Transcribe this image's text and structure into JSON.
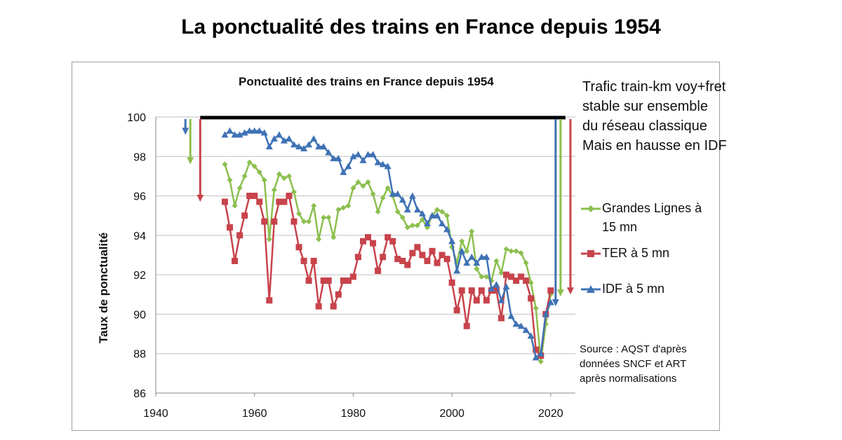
{
  "page": {
    "main_title": "La ponctualité des trains en France depuis 1954",
    "annotation_lines": [
      "Trafic train-km voy+fret",
      "stable sur ensemble",
      "du réseau classique",
      "Mais en hausse en IDF"
    ],
    "source_lines": [
      "Source : AQST d'après",
      "données SNCF et ART",
      "après  normalisations"
    ]
  },
  "colors": {
    "grandes_lignes": "#8cbf4e",
    "ter": "#c8434b",
    "idf": "#3f72b5",
    "reference_line": "#000000",
    "gridline": "#bfbfbf"
  },
  "chart_data": {
    "type": "line",
    "title": "Ponctualité des trains en France depuis 1954",
    "xlabel": "",
    "ylabel": "Taux de ponctualité",
    "xlim": [
      1940,
      2025
    ],
    "ylim": [
      86,
      100
    ],
    "xticks": [
      1940,
      1960,
      1980,
      2000,
      2020
    ],
    "yticks": [
      86,
      88,
      90,
      92,
      94,
      96,
      98,
      100
    ],
    "grid": "horizontal",
    "legend_position": "right",
    "legend": [
      {
        "label_lines": [
          "Grandes Lignes à",
          "15 mn"
        ],
        "series": "grandes_lignes",
        "marker": "diamond"
      },
      {
        "label_lines": [
          "TER à 5 mn"
        ],
        "series": "ter",
        "marker": "square"
      },
      {
        "label_lines": [
          "IDF à 5 mn"
        ],
        "series": "idf",
        "marker": "triangle"
      }
    ],
    "series": [
      {
        "name": "Grandes Lignes à 15 mn",
        "key": "grandes_lignes",
        "marker": "diamond",
        "x": [
          1954,
          1955,
          1956,
          1957,
          1958,
          1959,
          1960,
          1961,
          1962,
          1963,
          1964,
          1965,
          1966,
          1967,
          1968,
          1969,
          1970,
          1971,
          1972,
          1973,
          1974,
          1975,
          1976,
          1977,
          1978,
          1979,
          1980,
          1981,
          1982,
          1983,
          1984,
          1985,
          1986,
          1987,
          1988,
          1989,
          1990,
          1991,
          1992,
          1993,
          1994,
          1995,
          1996,
          1997,
          1998,
          1999,
          2000,
          2001,
          2002,
          2003,
          2004,
          2005,
          2006,
          2007,
          2008,
          2009,
          2010,
          2011,
          2012,
          2013,
          2014,
          2015,
          2016,
          2017,
          2018,
          2019,
          2020
        ],
        "y": [
          97.6,
          96.8,
          95.5,
          96.4,
          97.0,
          97.7,
          97.5,
          97.2,
          96.8,
          93.8,
          96.3,
          97.1,
          96.9,
          97.0,
          96.2,
          95.1,
          94.7,
          94.7,
          95.5,
          93.8,
          94.9,
          94.9,
          93.9,
          95.3,
          95.4,
          95.5,
          96.4,
          96.7,
          96.5,
          96.7,
          96.1,
          95.2,
          95.9,
          96.4,
          96.0,
          95.2,
          94.9,
          94.4,
          94.5,
          94.5,
          94.8,
          94.4,
          95.0,
          95.3,
          95.2,
          95.0,
          93.4,
          92.6,
          93.7,
          93.2,
          94.2,
          92.3,
          91.9,
          91.9,
          91.7,
          92.7,
          92.1,
          93.3,
          93.2,
          93.2,
          93.1,
          92.6,
          91.6,
          90.3,
          87.6,
          89.5,
          91.0
        ]
      },
      {
        "name": "TER à 5 mn",
        "key": "ter",
        "marker": "square",
        "x": [
          1954,
          1955,
          1956,
          1957,
          1958,
          1959,
          1960,
          1961,
          1962,
          1963,
          1964,
          1965,
          1966,
          1967,
          1968,
          1969,
          1970,
          1971,
          1972,
          1973,
          1974,
          1975,
          1976,
          1977,
          1978,
          1979,
          1980,
          1981,
          1982,
          1983,
          1984,
          1985,
          1986,
          1987,
          1988,
          1989,
          1990,
          1991,
          1992,
          1993,
          1994,
          1995,
          1996,
          1997,
          1998,
          1999,
          2000,
          2001,
          2002,
          2003,
          2004,
          2005,
          2006,
          2007,
          2008,
          2009,
          2010,
          2011,
          2012,
          2013,
          2014,
          2015,
          2016,
          2017,
          2018,
          2019,
          2020
        ],
        "y": [
          95.7,
          94.4,
          92.7,
          94.0,
          95.0,
          96.0,
          96.0,
          95.7,
          94.7,
          90.7,
          94.7,
          95.7,
          95.7,
          96.0,
          94.7,
          93.4,
          92.7,
          91.7,
          92.7,
          90.4,
          91.7,
          91.7,
          90.4,
          91.0,
          91.7,
          91.7,
          91.9,
          92.9,
          93.7,
          93.9,
          93.6,
          92.2,
          92.9,
          93.9,
          93.7,
          92.8,
          92.7,
          92.5,
          93.1,
          93.4,
          93.0,
          92.7,
          93.2,
          92.6,
          93.0,
          92.8,
          91.6,
          90.2,
          91.2,
          89.4,
          91.2,
          90.7,
          91.2,
          90.7,
          91.2,
          91.2,
          89.8,
          92.0,
          91.9,
          91.7,
          91.9,
          91.7,
          90.8,
          88.2,
          87.9,
          90.0,
          91.2
        ]
      },
      {
        "name": "IDF à 5 mn",
        "key": "idf",
        "marker": "triangle",
        "x": [
          1954,
          1955,
          1956,
          1957,
          1958,
          1959,
          1960,
          1961,
          1962,
          1963,
          1964,
          1965,
          1966,
          1967,
          1968,
          1969,
          1970,
          1971,
          1972,
          1973,
          1974,
          1975,
          1976,
          1977,
          1978,
          1979,
          1980,
          1981,
          1982,
          1983,
          1984,
          1985,
          1986,
          1987,
          1988,
          1989,
          1990,
          1991,
          1992,
          1993,
          1994,
          1995,
          1996,
          1997,
          1998,
          1999,
          2000,
          2001,
          2002,
          2003,
          2004,
          2005,
          2006,
          2007,
          2008,
          2009,
          2010,
          2011,
          2012,
          2013,
          2014,
          2015,
          2016,
          2017,
          2018,
          2019,
          2020
        ],
        "y": [
          99.1,
          99.3,
          99.1,
          99.1,
          99.2,
          99.3,
          99.3,
          99.3,
          99.2,
          98.5,
          98.9,
          99.1,
          98.8,
          98.9,
          98.6,
          98.5,
          98.4,
          98.6,
          98.9,
          98.5,
          98.5,
          98.2,
          97.9,
          97.9,
          97.2,
          97.5,
          98.0,
          98.1,
          97.8,
          98.1,
          98.1,
          97.7,
          97.6,
          97.5,
          96.1,
          96.1,
          95.8,
          95.3,
          96.0,
          95.3,
          95.1,
          94.6,
          95.0,
          95.0,
          94.6,
          94.3,
          93.7,
          92.2,
          93.2,
          92.6,
          92.9,
          92.6,
          92.9,
          92.9,
          91.3,
          91.5,
          90.7,
          91.4,
          89.9,
          89.5,
          89.4,
          89.2,
          88.9,
          87.8,
          88.0,
          90.0,
          90.6
        ]
      }
    ],
    "reference_line": {
      "x_start": 1949,
      "x_end": 2023,
      "y": 99.9
    },
    "arrows": [
      {
        "series": "idf",
        "x": 1946,
        "y_from": 99.9,
        "y_to": 99.1
      },
      {
        "series": "grandes_lignes",
        "x": 1947,
        "y_from": 99.9,
        "y_to": 97.6
      },
      {
        "series": "ter",
        "x": 1949,
        "y_from": 99.9,
        "y_to": 95.7
      },
      {
        "series": "idf",
        "x": 2021,
        "y_from": 99.9,
        "y_to": 90.4
      },
      {
        "series": "grandes_lignes",
        "x": 2022,
        "y_from": 99.9,
        "y_to": 90.9
      },
      {
        "series": "ter",
        "x": 2024,
        "y_from": 99.9,
        "y_to": 91.0
      }
    ]
  }
}
